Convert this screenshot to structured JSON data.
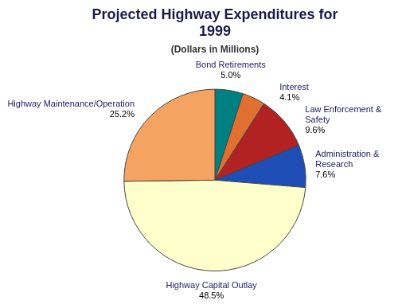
{
  "chart_data": {
    "type": "pie",
    "title": "Projected Highway Expenditures for\n1999",
    "subtitle": "(Dollars in Millions)",
    "categories": [
      "Bond Retirements",
      "Interest",
      "Law Enforcement &\nSafety",
      "Administration &\nResearch",
      "Highway Capital Outlay",
      "Highway Maintenance/Operation"
    ],
    "values": [
      5.0,
      4.1,
      9.6,
      7.6,
      48.5,
      25.2
    ],
    "value_labels": [
      "5.0%",
      "4.1%",
      "9.6%",
      "7.6%",
      "48.5%",
      "25.2%"
    ],
    "colors": [
      "#008080",
      "#E07030",
      "#B22222",
      "#1E4DB5",
      "#FFFFCC",
      "#F4A460"
    ],
    "data_labels": true
  }
}
